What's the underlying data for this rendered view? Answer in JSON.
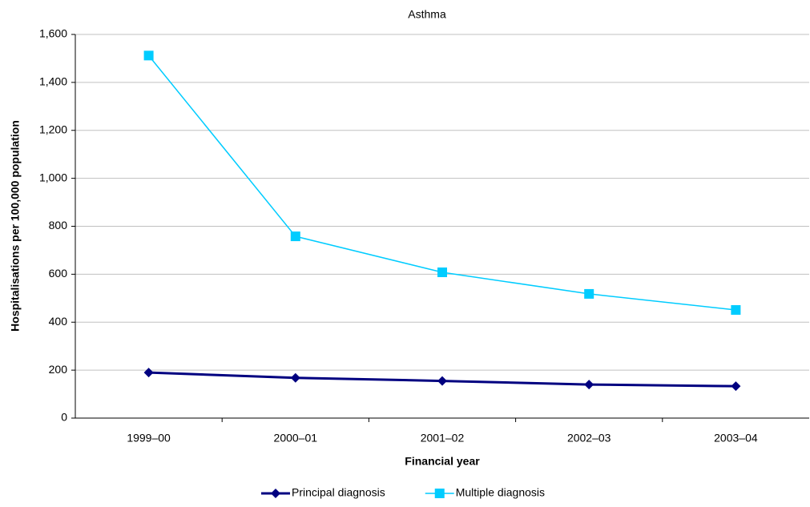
{
  "chart_data": {
    "type": "line",
    "title": "Asthma",
    "x_label": "Financial year",
    "y_label": "Hospitalisations per 100,000 population",
    "categories": [
      "1999–00",
      "2000–01",
      "2001–02",
      "2002–03",
      "2003–04"
    ],
    "series": [
      {
        "name": "Principal diagnosis",
        "color": "#000080",
        "marker": "diamond",
        "values": [
          190,
          168,
          155,
          140,
          133
        ]
      },
      {
        "name": "Multiple diagnosis",
        "color": "#00ccff",
        "marker": "square",
        "values": [
          1512,
          758,
          608,
          518,
          451
        ]
      }
    ],
    "ylim": [
      0,
      1600
    ],
    "yticks": [
      0,
      200,
      400,
      600,
      800,
      {
        "value": 1000,
        "label": "1,000"
      },
      {
        "value": 1200,
        "label": "1,200"
      },
      {
        "value": 1400,
        "label": "1,400"
      },
      {
        "value": 1600,
        "label": "1,600"
      }
    ],
    "grid": true,
    "legend": "bottom"
  }
}
